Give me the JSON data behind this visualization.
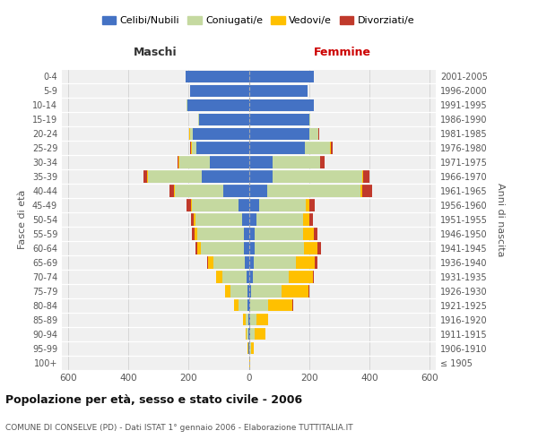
{
  "age_groups": [
    "100+",
    "95-99",
    "90-94",
    "85-89",
    "80-84",
    "75-79",
    "70-74",
    "65-69",
    "60-64",
    "55-59",
    "50-54",
    "45-49",
    "40-44",
    "35-39",
    "30-34",
    "25-29",
    "20-24",
    "15-19",
    "10-14",
    "5-9",
    "0-4"
  ],
  "birth_years": [
    "≤ 1905",
    "1906-1910",
    "1911-1915",
    "1916-1920",
    "1921-1925",
    "1926-1930",
    "1931-1935",
    "1936-1940",
    "1941-1945",
    "1946-1950",
    "1951-1955",
    "1956-1960",
    "1961-1965",
    "1966-1970",
    "1971-1975",
    "1976-1980",
    "1981-1985",
    "1986-1990",
    "1991-1995",
    "1996-2000",
    "2001-2005"
  ],
  "colors": {
    "celibi": "#4472c4",
    "coniugati": "#c5d9a0",
    "vedovi": "#ffc000",
    "divorziati": "#c0392b"
  },
  "maschi": {
    "celibi": [
      0,
      1,
      2,
      2,
      3,
      5,
      8,
      12,
      15,
      17,
      22,
      35,
      85,
      155,
      130,
      175,
      185,
      165,
      205,
      195,
      210
    ],
    "coniugati": [
      0,
      1,
      4,
      8,
      30,
      55,
      80,
      105,
      145,
      155,
      155,
      155,
      160,
      180,
      100,
      15,
      10,
      3,
      2,
      1,
      0
    ],
    "vedovi": [
      0,
      1,
      5,
      8,
      15,
      18,
      20,
      18,
      10,
      7,
      5,
      3,
      2,
      2,
      2,
      2,
      2,
      0,
      0,
      0,
      0
    ],
    "divorziati": [
      0,
      0,
      0,
      0,
      0,
      2,
      2,
      4,
      8,
      10,
      10,
      15,
      15,
      12,
      5,
      3,
      1,
      0,
      0,
      0,
      0
    ]
  },
  "femmine": {
    "celibi": [
      1,
      2,
      5,
      5,
      5,
      8,
      12,
      15,
      18,
      20,
      25,
      35,
      60,
      80,
      80,
      185,
      200,
      200,
      215,
      195,
      215
    ],
    "coniugati": [
      0,
      5,
      15,
      20,
      60,
      100,
      120,
      140,
      165,
      160,
      155,
      155,
      310,
      295,
      155,
      85,
      30,
      5,
      2,
      1,
      0
    ],
    "vedovi": [
      2,
      10,
      35,
      40,
      80,
      90,
      80,
      65,
      45,
      35,
      20,
      10,
      5,
      5,
      2,
      2,
      1,
      0,
      0,
      0,
      0
    ],
    "divorziati": [
      0,
      0,
      0,
      0,
      2,
      4,
      5,
      8,
      10,
      12,
      12,
      20,
      35,
      20,
      15,
      5,
      2,
      0,
      0,
      0,
      0
    ]
  },
  "xlim": 620,
  "title": "Popolazione per età, sesso e stato civile - 2006",
  "subtitle": "COMUNE DI CONSELVE (PD) - Dati ISTAT 1° gennaio 2006 - Elaborazione TUTTITALIA.IT",
  "xlabel_left": "Maschi",
  "xlabel_right": "Femmine",
  "ylabel_left": "Fasce di età",
  "ylabel_right": "Anni di nascita",
  "legend_labels": [
    "Celibi/Nubili",
    "Coniugati/e",
    "Vedovi/e",
    "Divorziati/e"
  ],
  "bg_color": "#f0f0f0"
}
